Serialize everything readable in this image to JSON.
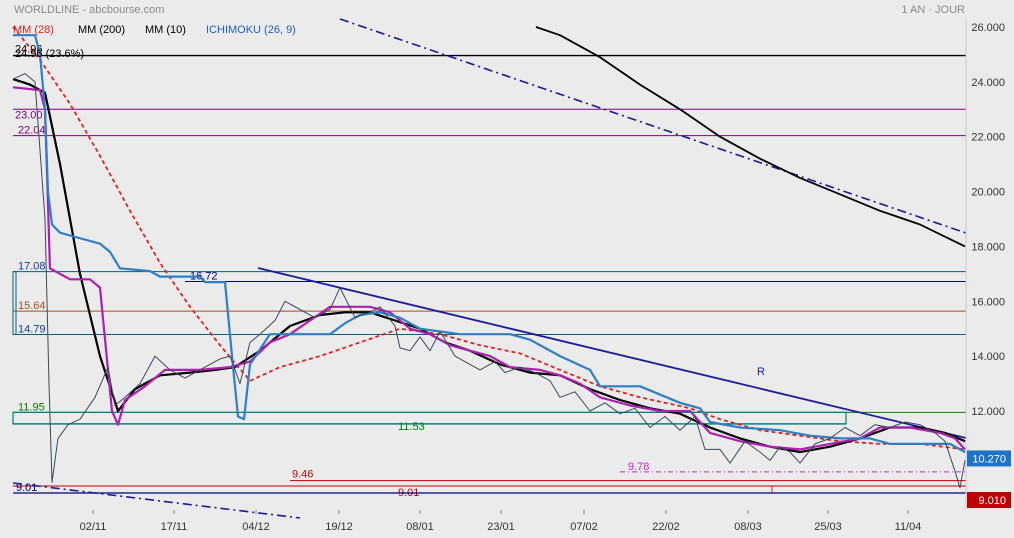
{
  "header": {
    "source": "WORLDLINE - abcbourse.com",
    "period": "1 AN · JOUR"
  },
  "legend": [
    {
      "label": "MM (28)",
      "color": "#e02020"
    },
    {
      "label": "MM (200)",
      "color": "#000000"
    },
    {
      "label": "MM (10)",
      "color": "#000000"
    },
    {
      "label": "ICHIMOKU (26, 9)",
      "color": "#2060c0"
    }
  ],
  "fib_label": "24.96 (23.6%)",
  "chart_data": {
    "type": "line",
    "ylim": [
      8.3,
      26.6
    ],
    "y_ticks": [
      "26.000",
      "24.000",
      "22.000",
      "20.000",
      "18.000",
      "16.000",
      "14.000",
      "12.000"
    ],
    "y_tick_values": [
      26,
      24,
      22,
      20,
      18,
      16,
      14,
      12
    ],
    "x_ticks": [
      "02/11",
      "17/11",
      "04/12",
      "19/12",
      "08/01",
      "23/01",
      "07/02",
      "22/02",
      "08/03",
      "25/03",
      "11/04"
    ],
    "price_tag": {
      "text": "10.270",
      "value": 10.27,
      "color": "#1f73c7"
    },
    "support_tag": {
      "text": "9.010",
      "value": 9.01,
      "color": "#c00000"
    },
    "levels": [
      {
        "label": "24.96",
        "value": 24.96,
        "color": "#000000",
        "label_color": "#000000"
      },
      {
        "label": "23.00",
        "value": 23.0,
        "color": "#800080",
        "label_color": "#800080"
      },
      {
        "label": "22.04",
        "value": 22.04,
        "color": "#800080",
        "label_color": "#800080"
      },
      {
        "label": "17.08",
        "value": 17.08,
        "color": "#006080",
        "label_color": "#1040a0"
      },
      {
        "label": "16.72",
        "value": 16.72,
        "color": "#000080",
        "label_color": "#000080"
      },
      {
        "label": "15.64",
        "value": 15.64,
        "color": "#a05020",
        "label_color": "#a05020"
      },
      {
        "label": "14.79",
        "value": 14.79,
        "color": "#006080",
        "label_color": "#1040a0"
      },
      {
        "label": "11.95",
        "value": 11.95,
        "color": "#008000",
        "label_color": "#008000"
      },
      {
        "label": "11.53",
        "value": 11.53,
        "color": "#008080",
        "label_color": "#008000"
      },
      {
        "label": "9.78",
        "value": 9.78,
        "color": "#d020d0",
        "label_color": "#d020d0"
      },
      {
        "label": "9.46",
        "value": 9.46,
        "color": "#c00000",
        "label_color": "#c00000"
      },
      {
        "label": "9.01",
        "value": 9.01,
        "color": "#c00000",
        "label_color": "#c00000"
      },
      {
        "label": "9.01",
        "value": 9.01,
        "color": "#000080",
        "label_color": "#000080"
      }
    ],
    "annotation": "R",
    "series": [
      {
        "name": "MM (200)",
        "color": "#000000",
        "points": [
          [
            536,
            26.0
          ],
          [
            560,
            25.7
          ],
          [
            600,
            24.9
          ],
          [
            640,
            23.9
          ],
          [
            680,
            23.0
          ],
          [
            720,
            22.0
          ],
          [
            760,
            21.2
          ],
          [
            800,
            20.5
          ],
          [
            840,
            19.9
          ],
          [
            880,
            19.3
          ],
          [
            920,
            18.8
          ],
          [
            965,
            18.0
          ]
        ]
      },
      {
        "name": "MM (28)",
        "color": "#e02020",
        "points": [
          [
            13,
            26.0
          ],
          [
            40,
            24.8
          ],
          [
            70,
            23.2
          ],
          [
            100,
            21.3
          ],
          [
            130,
            19.3
          ],
          [
            160,
            17.4
          ],
          [
            190,
            15.8
          ],
          [
            220,
            14.4
          ],
          [
            250,
            13.1
          ],
          [
            280,
            13.6
          ],
          [
            320,
            14.0
          ],
          [
            360,
            14.5
          ],
          [
            400,
            15.0
          ],
          [
            440,
            14.8
          ],
          [
            480,
            14.4
          ],
          [
            520,
            14.1
          ],
          [
            560,
            13.5
          ],
          [
            600,
            12.9
          ],
          [
            640,
            12.5
          ],
          [
            690,
            12.1
          ],
          [
            720,
            11.7
          ],
          [
            760,
            11.3
          ],
          [
            800,
            11.1
          ],
          [
            840,
            10.9
          ],
          [
            880,
            10.8
          ],
          [
            920,
            10.8
          ],
          [
            965,
            10.6
          ]
        ]
      },
      {
        "name": "MM (10)",
        "color": "#000000",
        "points": [
          [
            13,
            24.1
          ],
          [
            30,
            23.9
          ],
          [
            45,
            23.6
          ],
          [
            60,
            21.0
          ],
          [
            80,
            17.0
          ],
          [
            100,
            14.0
          ],
          [
            118,
            12.0
          ],
          [
            135,
            12.8
          ],
          [
            160,
            13.3
          ],
          [
            190,
            13.4
          ],
          [
            215,
            13.5
          ],
          [
            235,
            13.6
          ],
          [
            260,
            14.2
          ],
          [
            290,
            15.1
          ],
          [
            320,
            15.5
          ],
          [
            345,
            15.6
          ],
          [
            370,
            15.6
          ],
          [
            395,
            15.3
          ],
          [
            420,
            15.0
          ],
          [
            445,
            14.5
          ],
          [
            470,
            14.2
          ],
          [
            500,
            13.7
          ],
          [
            530,
            13.4
          ],
          [
            560,
            13.3
          ],
          [
            590,
            12.8
          ],
          [
            620,
            12.4
          ],
          [
            650,
            12.1
          ],
          [
            680,
            11.9
          ],
          [
            710,
            11.4
          ],
          [
            740,
            11.0
          ],
          [
            770,
            10.7
          ],
          [
            800,
            10.5
          ],
          [
            830,
            10.7
          ],
          [
            860,
            11.0
          ],
          [
            890,
            11.4
          ],
          [
            920,
            11.4
          ],
          [
            945,
            11.2
          ],
          [
            965,
            10.9
          ]
        ]
      },
      {
        "name": "ICHIMOKU",
        "color": "#b020b0",
        "points": [
          [
            13,
            23.8
          ],
          [
            40,
            23.7
          ],
          [
            45,
            23.0
          ],
          [
            50,
            17.2
          ],
          [
            70,
            16.8
          ],
          [
            90,
            16.8
          ],
          [
            100,
            16.5
          ],
          [
            112,
            12.0
          ],
          [
            118,
            11.5
          ],
          [
            125,
            12.4
          ],
          [
            145,
            12.9
          ],
          [
            165,
            13.5
          ],
          [
            200,
            13.5
          ],
          [
            230,
            13.6
          ],
          [
            250,
            13.8
          ],
          [
            270,
            14.5
          ],
          [
            290,
            14.8
          ],
          [
            310,
            15.3
          ],
          [
            330,
            15.8
          ],
          [
            370,
            15.8
          ],
          [
            390,
            15.6
          ],
          [
            410,
            15.0
          ],
          [
            430,
            14.8
          ],
          [
            450,
            14.4
          ],
          [
            470,
            14.2
          ],
          [
            490,
            14.0
          ],
          [
            510,
            13.6
          ],
          [
            540,
            13.5
          ],
          [
            560,
            13.3
          ],
          [
            580,
            13.0
          ],
          [
            600,
            12.5
          ],
          [
            630,
            12.2
          ],
          [
            660,
            12.0
          ],
          [
            690,
            12.0
          ],
          [
            710,
            11.2
          ],
          [
            740,
            10.9
          ],
          [
            770,
            10.7
          ],
          [
            800,
            10.6
          ],
          [
            830,
            10.8
          ],
          [
            860,
            11.0
          ],
          [
            880,
            11.4
          ],
          [
            910,
            11.4
          ],
          [
            940,
            11.2
          ],
          [
            955,
            11.0
          ],
          [
            965,
            10.6
          ]
        ]
      },
      {
        "name": "ICHIMOKU",
        "color": "#2f7fc8",
        "points": [
          [
            13,
            25.7
          ],
          [
            35,
            25.7
          ],
          [
            40,
            25.0
          ],
          [
            45,
            23.0
          ],
          [
            48,
            20.0
          ],
          [
            52,
            18.8
          ],
          [
            60,
            18.5
          ],
          [
            70,
            18.4
          ],
          [
            100,
            18.1
          ],
          [
            110,
            17.8
          ],
          [
            120,
            17.2
          ],
          [
            150,
            17.1
          ],
          [
            160,
            16.9
          ],
          [
            200,
            16.9
          ],
          [
            205,
            16.7
          ],
          [
            225,
            16.7
          ],
          [
            232,
            14.0
          ],
          [
            238,
            11.8
          ],
          [
            244,
            11.7
          ],
          [
            250,
            13.7
          ],
          [
            270,
            14.8
          ],
          [
            330,
            14.8
          ],
          [
            345,
            15.2
          ],
          [
            360,
            15.5
          ],
          [
            380,
            15.6
          ],
          [
            400,
            15.4
          ],
          [
            420,
            15.0
          ],
          [
            440,
            14.9
          ],
          [
            460,
            14.8
          ],
          [
            480,
            14.8
          ],
          [
            510,
            14.8
          ],
          [
            530,
            14.6
          ],
          [
            560,
            14.0
          ],
          [
            590,
            13.5
          ],
          [
            600,
            12.9
          ],
          [
            640,
            12.9
          ],
          [
            680,
            12.3
          ],
          [
            700,
            12.1
          ],
          [
            710,
            11.6
          ],
          [
            740,
            11.4
          ],
          [
            780,
            11.3
          ],
          [
            810,
            11.1
          ],
          [
            840,
            11.0
          ],
          [
            870,
            11.0
          ],
          [
            890,
            10.8
          ],
          [
            950,
            10.8
          ],
          [
            965,
            10.5
          ]
        ]
      },
      {
        "name": "Cours",
        "color": "#3a4a5a",
        "points": [
          [
            13,
            24.1
          ],
          [
            25,
            24.3
          ],
          [
            35,
            24.0
          ],
          [
            45,
            19.0
          ],
          [
            49,
            13.0
          ],
          [
            52,
            9.4
          ],
          [
            58,
            11.0
          ],
          [
            68,
            11.5
          ],
          [
            80,
            11.7
          ],
          [
            95,
            12.5
          ],
          [
            108,
            13.6
          ],
          [
            115,
            12.2
          ],
          [
            125,
            12.5
          ],
          [
            140,
            13.0
          ],
          [
            155,
            14.0
          ],
          [
            170,
            13.5
          ],
          [
            185,
            13.2
          ],
          [
            205,
            13.6
          ],
          [
            220,
            13.9
          ],
          [
            230,
            14.0
          ],
          [
            240,
            13.0
          ],
          [
            250,
            14.5
          ],
          [
            260,
            14.8
          ],
          [
            275,
            15.3
          ],
          [
            285,
            16.0
          ],
          [
            300,
            15.7
          ],
          [
            315,
            15.4
          ],
          [
            330,
            15.7
          ],
          [
            340,
            16.5
          ],
          [
            355,
            15.4
          ],
          [
            370,
            15.6
          ],
          [
            380,
            15.8
          ],
          [
            395,
            15.1
          ],
          [
            400,
            14.3
          ],
          [
            410,
            14.2
          ],
          [
            420,
            14.7
          ],
          [
            430,
            14.2
          ],
          [
            440,
            14.9
          ],
          [
            455,
            14.0
          ],
          [
            470,
            13.7
          ],
          [
            480,
            13.5
          ],
          [
            495,
            13.8
          ],
          [
            505,
            13.4
          ],
          [
            520,
            13.6
          ],
          [
            535,
            13.4
          ],
          [
            550,
            13.1
          ],
          [
            560,
            12.5
          ],
          [
            575,
            12.7
          ],
          [
            590,
            12.0
          ],
          [
            605,
            12.3
          ],
          [
            620,
            11.9
          ],
          [
            635,
            12.1
          ],
          [
            650,
            11.4
          ],
          [
            665,
            11.8
          ],
          [
            680,
            11.3
          ],
          [
            695,
            11.8
          ],
          [
            705,
            10.6
          ],
          [
            720,
            10.6
          ],
          [
            730,
            10.1
          ],
          [
            745,
            10.9
          ],
          [
            760,
            10.5
          ],
          [
            770,
            10.2
          ],
          [
            780,
            10.7
          ],
          [
            790,
            10.5
          ],
          [
            800,
            10.1
          ],
          [
            815,
            10.8
          ],
          [
            830,
            11.0
          ],
          [
            845,
            11.4
          ],
          [
            860,
            11.1
          ],
          [
            875,
            11.5
          ],
          [
            890,
            11.4
          ],
          [
            905,
            11.6
          ],
          [
            920,
            11.5
          ],
          [
            935,
            11.2
          ],
          [
            945,
            10.9
          ],
          [
            955,
            9.8
          ],
          [
            960,
            9.2
          ],
          [
            965,
            10.2
          ]
        ]
      }
    ]
  }
}
